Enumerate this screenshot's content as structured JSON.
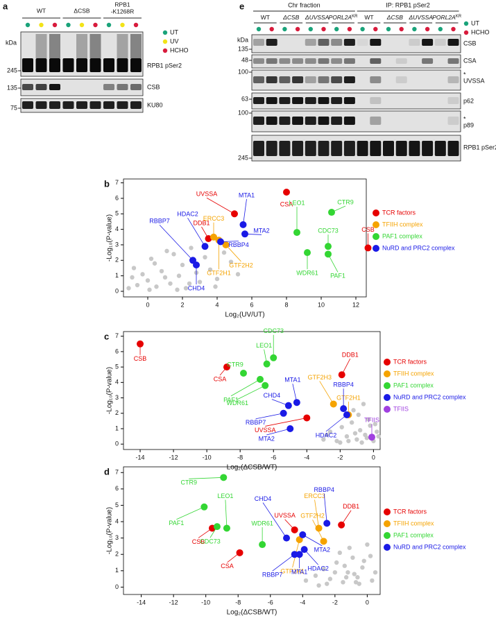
{
  "panel_a": {
    "label": "a",
    "groups": [
      [
        "WT"
      ],
      [
        "ΔCSB"
      ],
      [
        "RPB1",
        "-K1268R"
      ]
    ],
    "lanes": [
      0,
      1,
      2,
      0,
      1,
      2,
      0,
      1,
      2
    ],
    "legend": [
      {
        "label": "UT",
        "color": "#1aa37a"
      },
      {
        "label": "UV",
        "color": "#f2e318"
      },
      {
        "label": "HCHO",
        "color": "#d81b3c"
      }
    ],
    "kda_label": "kDa",
    "rows": [
      {
        "label": "RPB1 pSer2",
        "marker": "245"
      },
      {
        "label": "CSB",
        "marker": "135"
      },
      {
        "label": "KU80",
        "marker": "75"
      }
    ]
  },
  "panel_e": {
    "label": "e",
    "fractions": [
      {
        "title": "Chr fraction",
        "groups": [
          {
            "text": "WT"
          },
          {
            "text": "ΔCSB"
          },
          {
            "text": "ΔUVSSA"
          },
          {
            "text": "PORL2A",
            "sup": "KR"
          }
        ]
      },
      {
        "title": "IP: RPB1 pSer2",
        "groups": [
          {
            "text": "WT"
          },
          {
            "text": "ΔCSB"
          },
          {
            "text": "ΔUVSSA"
          },
          {
            "text": "PORL2A",
            "sup": "KR"
          }
        ]
      }
    ],
    "lanes": [
      0,
      1,
      0,
      1,
      0,
      1,
      0,
      1,
      0,
      1,
      0,
      1,
      0,
      1,
      0,
      1
    ],
    "legend": [
      {
        "label": "UT",
        "color": "#1aa37a"
      },
      {
        "label": "HCHO",
        "color": "#d81b3c"
      }
    ],
    "kda_label": "kDa",
    "rows": [
      {
        "label": "CSB",
        "marker": "135"
      },
      {
        "label": "CSA",
        "marker": "48"
      },
      {
        "label": "UVSSA",
        "marker": "100",
        "note": "*"
      },
      {
        "label": "p62",
        "marker": "63"
      },
      {
        "label": "p89",
        "marker": "100",
        "note": "*"
      },
      {
        "label": "RPB1 pSer2",
        "marker": "245"
      }
    ]
  },
  "chart_data": [
    {
      "type": "scatter",
      "panel_label": "b",
      "xlabel": "Log₂(UV/UT)",
      "ylabel": "-Log₁₀(P-value)",
      "xlim": [
        -1.4,
        12.6
      ],
      "ylim": [
        -0.36,
        7.25
      ],
      "xticks": [
        0,
        2,
        4,
        6,
        8,
        10,
        12
      ],
      "yticks": [
        0,
        1,
        2,
        3,
        4,
        5,
        6,
        7
      ],
      "series": [
        {
          "color": "#c8c8c8",
          "x": [
            -1.1,
            -0.8,
            -0.6,
            -0.3,
            0,
            0.2,
            0.5,
            0.8,
            1,
            1.3,
            1.5,
            1.8,
            2,
            2.2,
            2.5,
            2.8,
            3,
            3.3,
            3.6,
            4,
            4.4,
            4.8,
            5.2,
            0.4,
            1.1,
            1.7,
            -0.9,
            2.4,
            3.9,
            0.1
          ],
          "y": [
            0.2,
            1.5,
            0.4,
            1.1,
            0.7,
            2.1,
            0.3,
            1.3,
            0.9,
            0.5,
            2.4,
            1,
            1.7,
            0.2,
            2.8,
            1.2,
            0.6,
            2.2,
            1.4,
            0.8,
            2.5,
            1.9,
            1.1,
            1.8,
            2.6,
            0.1,
            0.9,
            0.5,
            0.3,
            0.1
          ]
        },
        {
          "name": "TCR factors",
          "color": "#e60000",
          "labels": [
            "UVSSA",
            "CSA",
            "DDB1",
            "CSB"
          ],
          "x": [
            5.0,
            8.0,
            3.5,
            12.7
          ],
          "y": [
            5.0,
            6.4,
            3.4,
            2.8
          ]
        },
        {
          "name": "TFIIH complex",
          "color": "#f5a300",
          "labels": [
            "ERCC3",
            "GTF2H2",
            "GTF2H1"
          ],
          "x": [
            3.8,
            4.5,
            4.1
          ],
          "y": [
            3.5,
            3.0,
            3.3
          ]
        },
        {
          "name": "PAF1 complex",
          "color": "#33d633",
          "labels": [
            "LEO1",
            "CTR9",
            "CDC73",
            "WDR61",
            "PAF1"
          ],
          "x": [
            8.6,
            10.6,
            10.4,
            9.2,
            10.4
          ],
          "y": [
            3.8,
            5.1,
            2.9,
            2.5,
            2.4
          ]
        },
        {
          "name": "NuRD and PRC2 complex",
          "color": "#1a1ae6",
          "labels": [
            "MTA1",
            "MTA2",
            "RBBP4",
            "HDAC2",
            "RBBP7",
            "CHD4"
          ],
          "x": [
            5.5,
            5.6,
            4.2,
            3.3,
            2.6,
            2.8
          ],
          "y": [
            4.3,
            3.7,
            3.2,
            2.9,
            2.0,
            1.7
          ]
        }
      ]
    },
    {
      "type": "scatter",
      "panel_label": "c",
      "xlabel": "Log₂(ΔCSB/WT)",
      "ylabel": "-Log₁₀(P-value)",
      "xlim": [
        -15,
        0.4
      ],
      "ylim": [
        -0.35,
        7.3
      ],
      "xticks": [
        -14,
        -12,
        -10,
        -8,
        -6,
        -4,
        -2,
        0
      ],
      "yticks": [
        0,
        1,
        2,
        3,
        4,
        5,
        6,
        7
      ],
      "series": [
        {
          "color": "#c8c8c8",
          "x": [
            -3,
            -2.6,
            -2.2,
            -1.9,
            -1.6,
            -1.3,
            -1,
            -0.8,
            -0.5,
            -0.3,
            0,
            0.2,
            -1.2,
            -0.6,
            -0.2,
            -2,
            -1.5,
            -0.9,
            -0.4,
            0.1,
            -2.8,
            -1.8,
            -0.7,
            0.3,
            -1.1
          ],
          "y": [
            0.3,
            0.8,
            0.2,
            1.1,
            0.5,
            1.4,
            0.3,
            0.9,
            0.6,
            1.6,
            0.2,
            0.8,
            2.2,
            2.6,
            1.2,
            0.1,
            0.2,
            1.9,
            0.4,
            1.3,
            0.6,
            2.4,
            0.1,
            0.5,
            0.7
          ]
        },
        {
          "name": "TCR factors",
          "color": "#e60000",
          "labels": [
            "CSB",
            "CSA",
            "UVSSA",
            "DDB1"
          ],
          "x": [
            -14.0,
            -8.8,
            -4.0,
            -1.9
          ],
          "y": [
            6.5,
            5.0,
            1.7,
            4.5
          ]
        },
        {
          "name": "TFIIH complex",
          "color": "#f5a300",
          "labels": [
            "GTF2H3",
            "GTF2H1"
          ],
          "x": [
            -2.4,
            -1.5
          ],
          "y": [
            2.6,
            1.9
          ]
        },
        {
          "name": "PAF1 complex",
          "color": "#33d633",
          "labels": [
            "CTR9",
            "LEO1",
            "CDC73",
            "PAF1",
            "WDR61"
          ],
          "x": [
            -7.8,
            -6.4,
            -6.0,
            -6.8,
            -6.5
          ],
          "y": [
            4.6,
            5.2,
            5.6,
            4.2,
            3.8
          ]
        },
        {
          "name": "NuRD and PRC2 complex",
          "color": "#1a1ae6",
          "labels": [
            "MTA1",
            "CHD4",
            "RBBP7",
            "RBBP4",
            "HDAC2",
            "MTA2"
          ],
          "x": [
            -4.6,
            -5.1,
            -5.4,
            -1.8,
            -1.6,
            -5.0
          ],
          "y": [
            2.7,
            2.5,
            2.0,
            2.3,
            1.9,
            1.0
          ]
        },
        {
          "name": "TFIIS",
          "color": "#a040e0",
          "labels": [
            "TFIIS"
          ],
          "x": [
            -0.1
          ],
          "y": [
            0.45
          ]
        }
      ]
    },
    {
      "type": "scatter",
      "panel_label": "d",
      "xlabel": "Log₂(ΔCSB/WT)",
      "ylabel": "-Log₁₀(P-value)",
      "xlim": [
        -15.1,
        0.8
      ],
      "ylim": [
        -0.45,
        7.35
      ],
      "xticks": [
        -14,
        -12,
        -10,
        -8,
        -6,
        -4,
        -2,
        0
      ],
      "yticks": [
        0,
        1,
        2,
        3,
        4,
        5,
        6,
        7
      ],
      "series": [
        {
          "color": "#c8c8c8",
          "x": [
            -3.8,
            -3.2,
            -2.7,
            -2.3,
            -1.9,
            -1.5,
            -1.2,
            -0.9,
            -0.6,
            -0.3,
            0,
            0.3,
            -1.7,
            -1.1,
            -0.5,
            -2.5,
            -1.4,
            -0.8,
            -0.2,
            0.5,
            -3,
            -2,
            -0.7,
            0.2,
            -1.3
          ],
          "y": [
            0.4,
            0.7,
            1.1,
            0.5,
            1.5,
            0.3,
            0.9,
            1.8,
            0.6,
            1.2,
            2.6,
            0.4,
            2.1,
            2.4,
            0.2,
            0.2,
            1.3,
            0.8,
            1.6,
            0.9,
            0.1,
            0.9,
            0.3,
            1.9,
            0.6
          ]
        },
        {
          "name": "TCR factors",
          "color": "#e60000",
          "labels": [
            "CSB",
            "CSA",
            "UVSSA",
            "DDB1"
          ],
          "x": [
            -9.6,
            -7.9,
            -4.5,
            -1.6
          ],
          "y": [
            3.6,
            2.1,
            3.5,
            3.8
          ]
        },
        {
          "name": "TFIIH complex",
          "color": "#f5a300",
          "labels": [
            "ERCC3",
            "GTF2H2",
            "GTF2H1"
          ],
          "x": [
            -3.0,
            -2.7,
            -4.2
          ],
          "y": [
            3.6,
            2.8,
            2.9
          ]
        },
        {
          "name": "PAF1 complex",
          "color": "#33d633",
          "labels": [
            "CTR9",
            "PAF1",
            "LEO1",
            "CDC73",
            "WDR61"
          ],
          "x": [
            -8.9,
            -10.1,
            -8.7,
            -9.3,
            -6.5
          ],
          "y": [
            6.7,
            4.9,
            3.6,
            3.7,
            2.6
          ]
        },
        {
          "name": "NuRD and PRC2 complex",
          "color": "#1a1ae6",
          "labels": [
            "CHD4",
            "RBBP4",
            "MTA2",
            "HDAC2",
            "MTA1",
            "RBBP7"
          ],
          "x": [
            -5.0,
            -2.5,
            -4.0,
            -3.9,
            -4.2,
            -4.5
          ],
          "y": [
            3.0,
            3.9,
            3.2,
            2.3,
            2.0,
            2.0
          ]
        }
      ]
    }
  ]
}
